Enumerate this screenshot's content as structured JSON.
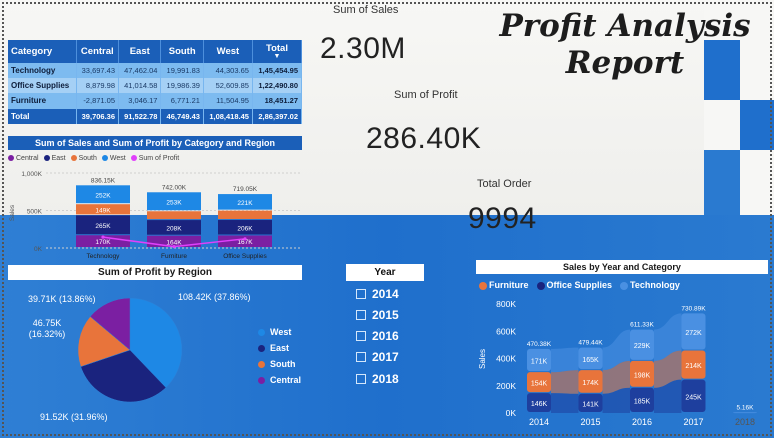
{
  "title": {
    "line1": "Profit Analysis",
    "line2": "Report"
  },
  "kpis": {
    "sales": {
      "label": "Sum of Sales",
      "value": "2.30M"
    },
    "profit": {
      "label": "Sum of Profit",
      "value": "286.40K"
    },
    "orders": {
      "label": "Total Order",
      "value": "9994"
    }
  },
  "matrix": {
    "headers": [
      "Category",
      "Central",
      "East",
      "South",
      "West",
      "Total"
    ],
    "rows": [
      {
        "category": "Technology",
        "central": "33,697.43",
        "east": "47,462.04",
        "south": "19,991.83",
        "west": "44,303.65",
        "total": "1,45,454.95"
      },
      {
        "category": "Office Supplies",
        "central": "8,879.98",
        "east": "41,014.58",
        "south": "19,986.39",
        "west": "52,609.85",
        "total": "1,22,490.80"
      },
      {
        "category": "Furniture",
        "central": "-2,871.05",
        "east": "3,046.17",
        "south": "6,771.21",
        "west": "11,504.95",
        "total": "18,451.27"
      }
    ],
    "total": {
      "category": "Total",
      "central": "39,706.36",
      "east": "91,522.78",
      "south": "46,749.43",
      "west": "1,08,418.45",
      "total": "2,86,397.02"
    }
  },
  "category_chart_title": "Sum of Sales and Sum of Profit by Category and Region",
  "region_legend": [
    "Central",
    "East",
    "South",
    "West",
    "Sum of Profit"
  ],
  "pie_title": "Sum of Profit by Region",
  "pie_labels": {
    "west": "108.42K (37.86%)",
    "east": "91.52K (31.96%)",
    "south": "46.75K (16.32%)",
    "central": "39.71K (13.86%)"
  },
  "pie_legend": [
    "West",
    "East",
    "South",
    "Central"
  ],
  "slicer": {
    "title": "Year",
    "items": [
      "2014",
      "2015",
      "2016",
      "2017",
      "2018"
    ]
  },
  "year_chart_title": "Sales by Year and Category",
  "year_legend": [
    "Furniture",
    "Office Supplies",
    "Technology"
  ],
  "colors": {
    "central": "#7b1fa2",
    "east": "#1a237e",
    "south": "#e8743b",
    "west": "#1e88e5",
    "profit": "#e040fb",
    "furniture": "#e8743b",
    "office": "#1e3f9e",
    "technology": "#4a90e2",
    "header": "#1b5fb8"
  },
  "chart_data": [
    {
      "type": "bar",
      "title": "Sum of Sales and Sum of Profit by Category and Region",
      "categories": [
        "Technology",
        "Furniture",
        "Office Supplies"
      ],
      "ylabel": "Sales",
      "ylim": [
        0,
        1000000
      ],
      "yticks": [
        "0K",
        "500K",
        "1,000K"
      ],
      "series": [
        {
          "name": "Central",
          "values": [
            170000,
            164000,
            167000
          ],
          "labels": [
            "170K",
            "164K",
            "167K"
          ]
        },
        {
          "name": "East",
          "values": [
            265000,
            208000,
            206000
          ],
          "labels": [
            "265K",
            "208K",
            "206K"
          ]
        },
        {
          "name": "South",
          "values": [
            149000,
            118000,
            125000
          ],
          "labels": [
            "149K",
            "",
            ""
          ]
        },
        {
          "name": "West",
          "values": [
            252000,
            253000,
            221000
          ],
          "labels": [
            "252K",
            "253K",
            "221K"
          ]
        }
      ],
      "totals": [
        "836.15K",
        "742.00K",
        "719.05K"
      ],
      "line_series": {
        "name": "Sum of Profit",
        "values": [
          145455,
          18451,
          122491
        ]
      }
    },
    {
      "type": "pie",
      "title": "Sum of Profit by Region",
      "categories": [
        "West",
        "East",
        "South",
        "Central"
      ],
      "values": [
        108418.45,
        91522.78,
        46749.43,
        39706.36
      ]
    },
    {
      "type": "area",
      "title": "Sales by Year and Category",
      "x": [
        "2014",
        "2015",
        "2016",
        "2017",
        "2018"
      ],
      "ylabel": "Sales",
      "ylim": [
        0,
        800000
      ],
      "yticks": [
        "0K",
        "200K",
        "400K",
        "600K",
        "800K"
      ],
      "series": [
        {
          "name": "Office Supplies",
          "values": [
            146000,
            141000,
            185000,
            245000,
            0
          ],
          "labels": [
            "146K",
            "141K",
            "185K",
            "245K",
            ""
          ]
        },
        {
          "name": "Furniture",
          "values": [
            154000,
            174000,
            198000,
            214000,
            0
          ],
          "labels": [
            "154K",
            "174K",
            "198K",
            "214K",
            ""
          ]
        },
        {
          "name": "Technology",
          "values": [
            171000,
            165000,
            229000,
            272000,
            5160
          ],
          "labels": [
            "171K",
            "165K",
            "229K",
            "272K",
            ""
          ]
        }
      ],
      "totals": [
        "470.38K",
        "479.44K",
        "611.33K",
        "730.89K",
        "5.16K"
      ]
    }
  ]
}
